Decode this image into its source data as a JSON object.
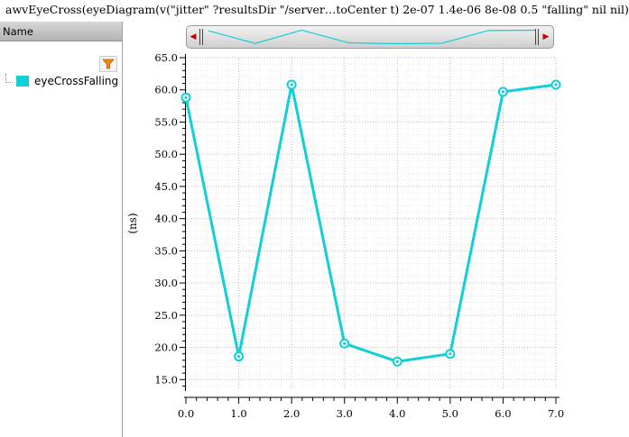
{
  "window": {
    "title": "awvEyeCross(eyeDiagram(v(\"jitter\" ?resultsDir \"/server…toCenter t) 2e-07 1.4e-06 8e-08 0.5 \"falling\" nil nil)"
  },
  "legend_panel": {
    "header": "Name",
    "filter_icon": "filter-funnel-icon",
    "items": [
      {
        "label": "eyeCrossFalling",
        "color": "#11cfd6"
      }
    ]
  },
  "overview_scroller": {
    "left_arrow_icon": "triangle-left-icon",
    "right_arrow_icon": "triangle-right-icon"
  },
  "chart_data": {
    "type": "line",
    "x": [
      0,
      1,
      2,
      3,
      4,
      5,
      6,
      7
    ],
    "series": [
      {
        "name": "eyeCrossFalling",
        "values": [
          58.8,
          18.6,
          60.8,
          20.6,
          17.8,
          19.0,
          59.7,
          60.8
        ],
        "color": "#11cfd6",
        "marker": "circle"
      }
    ],
    "ylabel": "(ns)",
    "xlabel": "",
    "xlim": [
      0,
      7
    ],
    "ylim": [
      13.5,
      65
    ],
    "x_ticks": [
      "0.0",
      "1.0",
      "2.0",
      "3.0",
      "4.0",
      "5.0",
      "6.0",
      "7.0"
    ],
    "y_ticks": [
      "15.0",
      "20.0",
      "25.0",
      "30.0",
      "35.0",
      "40.0",
      "45.0",
      "50.0",
      "55.0",
      "60.0",
      "65.0"
    ],
    "grid": true
  }
}
